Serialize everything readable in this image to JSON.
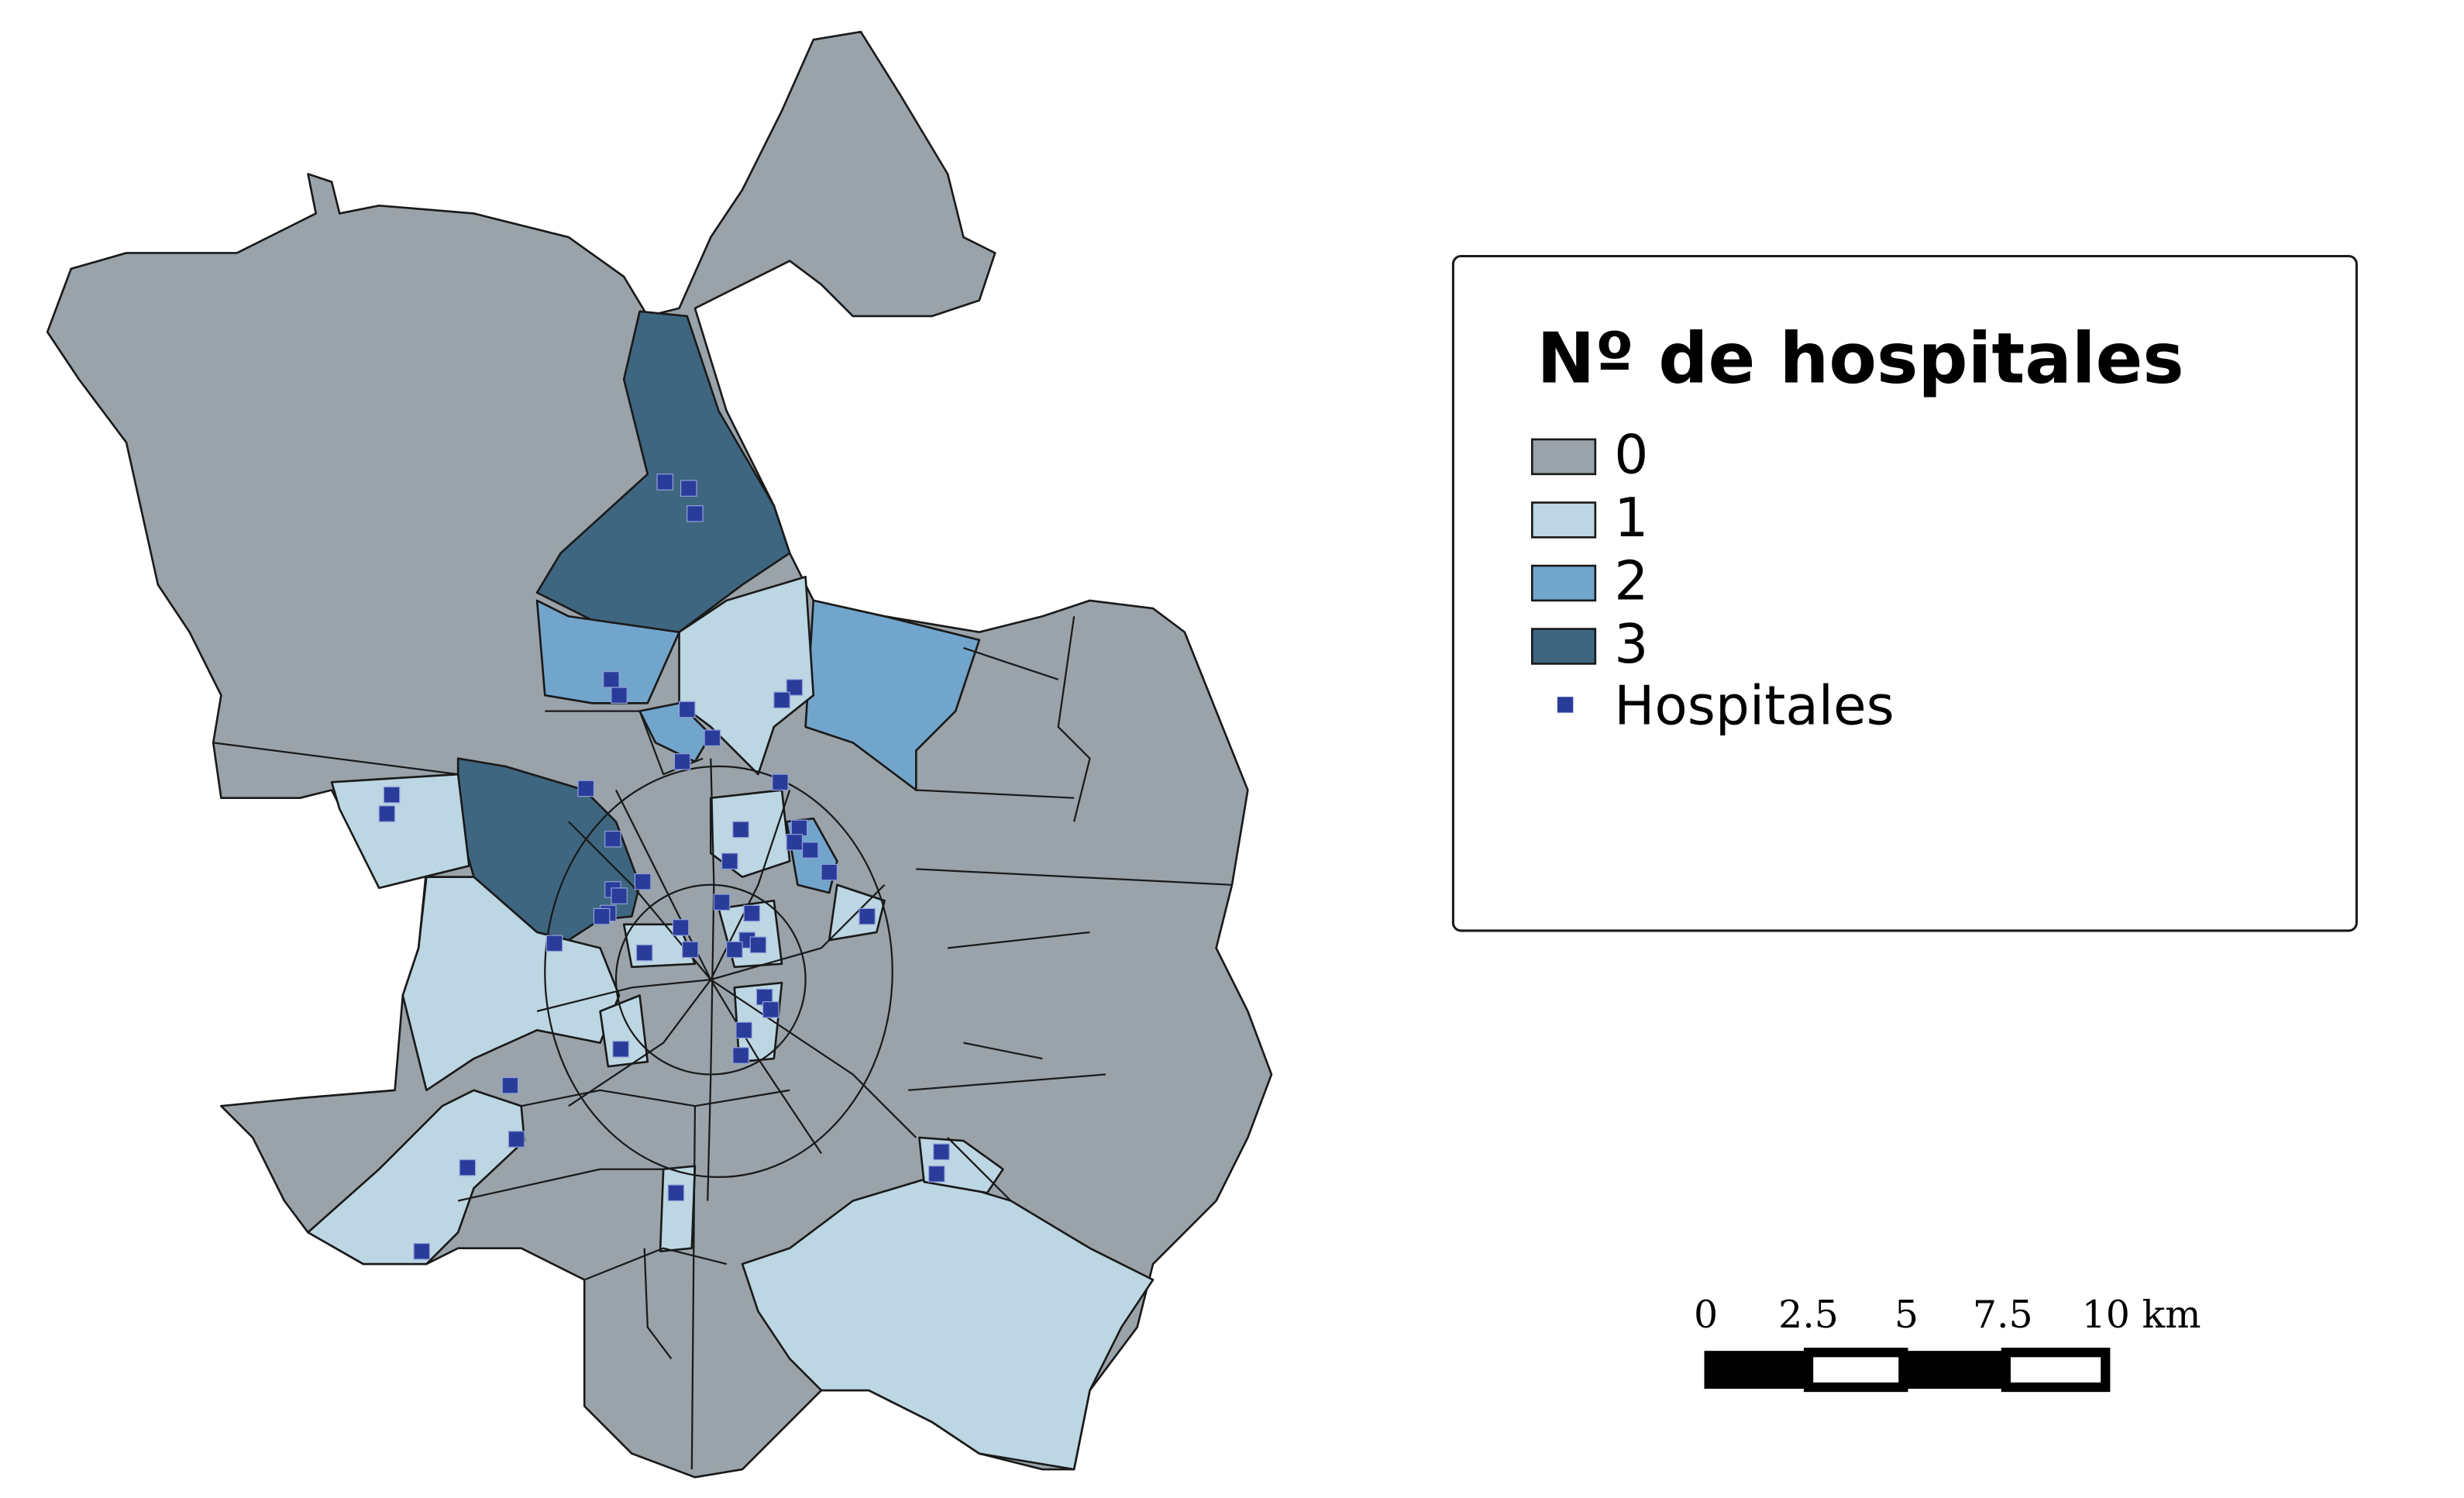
{
  "legend": {
    "title": "Nº de hospitales",
    "items": [
      {
        "label": "0",
        "color": "#99a3a9"
      },
      {
        "label": "1",
        "color": "#bcd6e3"
      },
      {
        "label": "2",
        "color": "#72a5cc"
      },
      {
        "label": "3",
        "color": "#3f6680"
      }
    ],
    "points_label": "Hospitales",
    "points_color": "#2a3c9a"
  },
  "scale_bar": {
    "labels": [
      "0",
      "2.5",
      "5",
      "7.5",
      "10 km"
    ]
  }
}
